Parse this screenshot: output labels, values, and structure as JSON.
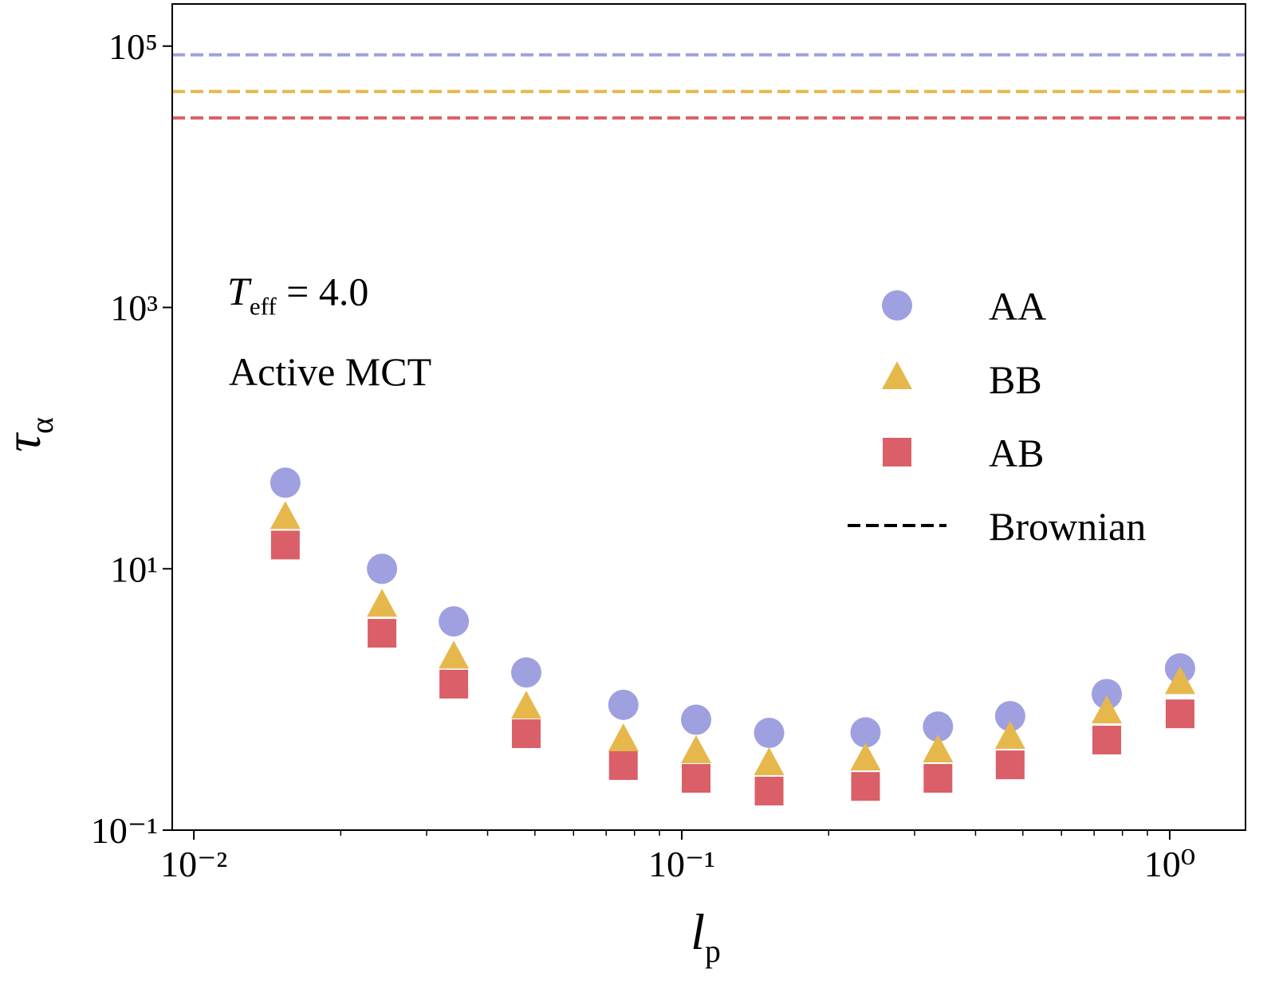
{
  "chart_data": {
    "type": "scatter",
    "x": [
      0.0154,
      0.0243,
      0.0341,
      0.048,
      0.0759,
      0.107,
      0.151,
      0.238,
      0.335,
      0.471,
      0.743,
      1.05
    ],
    "series": [
      {
        "name": "AA",
        "color": "#9fa0e0",
        "marker": "circle",
        "brownian": 85700,
        "values": [
          45.6,
          10,
          3.96,
          1.61,
          0.91,
          0.7,
          0.555,
          0.56,
          0.62,
          0.745,
          1.1,
          1.73
        ]
      },
      {
        "name": "BB",
        "color": "#e6b84c",
        "marker": "triangle",
        "brownian": 44900,
        "values": [
          24.2,
          5.16,
          2.07,
          0.857,
          0.482,
          0.391,
          0.316,
          0.344,
          0.396,
          0.503,
          0.787,
          1.32
        ]
      },
      {
        "name": "AB",
        "color": "#da5f68",
        "marker": "square",
        "brownian": 28200,
        "values": [
          15.2,
          3.21,
          1.31,
          0.547,
          0.312,
          0.249,
          0.199,
          0.216,
          0.249,
          0.316,
          0.489,
          0.776
        ]
      }
    ],
    "reference_name": "Brownian",
    "xlabel": {
      "symbol": "l",
      "subscript": "p"
    },
    "ylabel": {
      "symbol": "τ",
      "subscript": "α"
    },
    "annotation": {
      "symbol": "T",
      "subscript": "eff",
      "rest": " = 4.0",
      "note": "Active MCT"
    },
    "xscale": "log",
    "yscale": "log",
    "xlim": [
      0.00903,
      1.43
    ],
    "ylim": [
      0.1,
      210000
    ],
    "xticks": [
      {
        "value": 0.01,
        "label": "10⁻²"
      },
      {
        "value": 0.1,
        "label": "10⁻¹"
      },
      {
        "value": 1,
        "label": "10⁰"
      }
    ],
    "xminorticks": [
      0.02,
      0.03,
      0.04,
      0.05,
      0.06,
      0.07,
      0.08,
      0.09,
      0.2,
      0.3,
      0.4,
      0.5,
      0.6,
      0.7,
      0.8,
      0.9
    ],
    "yticks": [
      {
        "value": 0.1,
        "label": "10⁻¹"
      },
      {
        "value": 10,
        "label": "10¹"
      },
      {
        "value": 1000,
        "label": "10³"
      },
      {
        "value": 100000,
        "label": "10⁵"
      }
    ],
    "grid": false
  }
}
